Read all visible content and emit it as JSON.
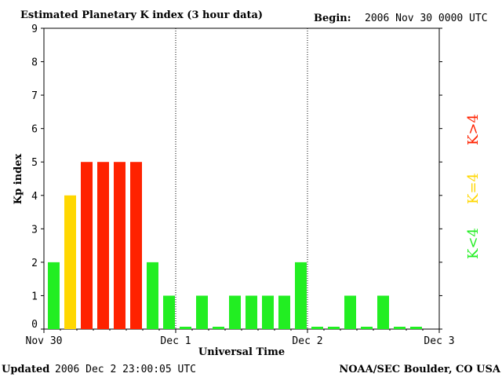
{
  "header": {
    "title": "Estimated Planetary K index (3 hour data)",
    "begin_label": "Begin:",
    "begin_value": "2006 Nov 30 0000 UTC"
  },
  "footer": {
    "updated_label": "Updated",
    "updated_value": "2006 Dec  2 23:00:05 UTC",
    "source": "NOAA/SEC Boulder, CO USA"
  },
  "legend": [
    {
      "label": "K<4",
      "color": "#22ee22"
    },
    {
      "label": "K=4",
      "color": "#ffd700"
    },
    {
      "label": "K>4",
      "color": "#ff2200"
    }
  ],
  "chart_data": {
    "type": "bar",
    "title": "Estimated Planetary K index (3 hour data)",
    "xlabel": "Universal Time",
    "ylabel": "Kp index",
    "ylim": [
      0,
      9
    ],
    "yticks": [
      "0",
      "1",
      "2",
      "3",
      "4",
      "5",
      "6",
      "7",
      "8",
      "9"
    ],
    "xticks": [
      "Nov 30",
      "Dec 1",
      "Dec 2",
      "Dec 3"
    ],
    "day_dividers": [
      "Dec 1",
      "Dec 2"
    ],
    "bar_interval_hours": 3,
    "values": [
      2,
      4,
      5,
      5,
      5,
      5,
      2,
      1,
      0,
      1,
      0,
      1,
      1,
      1,
      1,
      2,
      0,
      0,
      1,
      0,
      1,
      0,
      0
    ],
    "colors": {
      "low": "#22ee22",
      "equal": "#ffd700",
      "high": "#ff2200"
    }
  }
}
